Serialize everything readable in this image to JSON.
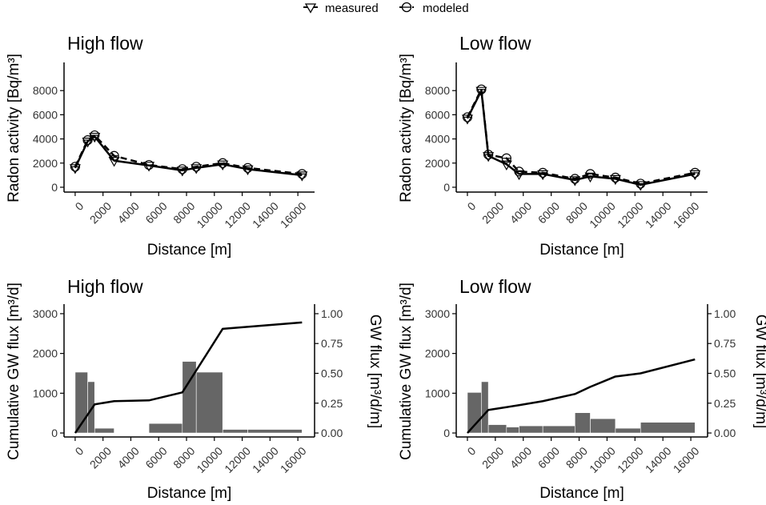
{
  "legend": {
    "items": [
      {
        "label": "measured",
        "icon": "triangle-down-icon"
      },
      {
        "label": "modeled",
        "icon": "circle-minus-icon"
      }
    ]
  },
  "chart_data": [
    {
      "id": "p1",
      "type": "line",
      "title": "High flow",
      "xlabel": "Distance [m]",
      "ylabel": "Radon activity [Bq/m³]",
      "xlim": [
        -800,
        17200
      ],
      "ylim": [
        -400,
        10200
      ],
      "xticks": [
        0,
        2000,
        4000,
        6000,
        8000,
        10000,
        12000,
        14000,
        16000
      ],
      "yticks": [
        0,
        2000,
        4000,
        6000,
        8000
      ],
      "series": [
        {
          "name": "measured",
          "x": [
            0,
            900,
            1400,
            2800,
            5300,
            7700,
            8700,
            10600,
            12400,
            16300
          ],
          "y": [
            1600,
            3800,
            4200,
            2200,
            1800,
            1400,
            1600,
            1900,
            1500,
            1000
          ]
        },
        {
          "name": "modeled",
          "x": [
            0,
            900,
            1400,
            2800,
            5300,
            7700,
            8700,
            10600,
            12400,
            16300
          ],
          "y": [
            1700,
            3900,
            4300,
            2600,
            1850,
            1500,
            1700,
            2000,
            1600,
            1100
          ]
        }
      ]
    },
    {
      "id": "p2",
      "type": "line",
      "title": "Low flow",
      "xlabel": "Distance [m]",
      "ylabel": "Radon activity [Bq/m³]",
      "xlim": [
        -800,
        17200
      ],
      "ylim": [
        -400,
        10200
      ],
      "xticks": [
        0,
        2000,
        4000,
        6000,
        8000,
        10000,
        12000,
        14000,
        16000
      ],
      "yticks": [
        0,
        2000,
        4000,
        6000,
        8000
      ],
      "series": [
        {
          "name": "measured",
          "x": [
            0,
            1000,
            1500,
            2800,
            3700,
            5400,
            7700,
            8800,
            10600,
            12400,
            16300
          ],
          "y": [
            5700,
            8000,
            2600,
            1900,
            1100,
            1100,
            600,
            900,
            700,
            200,
            1100
          ]
        },
        {
          "name": "modeled",
          "x": [
            0,
            1000,
            1500,
            2800,
            3700,
            5400,
            7700,
            8800,
            10600,
            12400,
            16300
          ],
          "y": [
            5800,
            8100,
            2700,
            2400,
            1300,
            1200,
            700,
            1100,
            800,
            300,
            1200
          ]
        }
      ]
    },
    {
      "id": "p3",
      "type": "bar",
      "title": "High flow",
      "xlabel": "Distance [m]",
      "ylabel": "Cumulative GW flux [m³/d]",
      "ylabel2": "GW flux [m³/d/m]",
      "xlim": [
        -800,
        17200
      ],
      "ylim": [
        -100,
        3200
      ],
      "ylim2": [
        -0.0333,
        1.0667
      ],
      "xticks": [
        0,
        2000,
        4000,
        6000,
        8000,
        10000,
        12000,
        14000,
        16000
      ],
      "yticks": [
        0,
        1000,
        2000,
        3000
      ],
      "yticks2": [
        0.0,
        0.25,
        0.5,
        0.75,
        1.0
      ],
      "ytick_labels2": [
        "0.00",
        "0.25",
        "0.50",
        "0.75",
        "1.00"
      ],
      "bars": {
        "name": "GW flux",
        "x_start": [
          0,
          900,
          1400,
          2800,
          5300,
          7700,
          8700,
          10600,
          12400
        ],
        "x_end": [
          900,
          1400,
          2800,
          5300,
          7700,
          8700,
          10600,
          12400,
          16300
        ],
        "values": [
          0.51,
          0.43,
          0.04,
          0.0,
          0.08,
          0.6,
          0.51,
          0.03,
          0.03
        ]
      },
      "line": {
        "name": "cumulative GW flux",
        "x": [
          0,
          1400,
          2800,
          5300,
          7700,
          10600,
          16300
        ],
        "y": [
          0,
          720,
          800,
          820,
          1020,
          2620,
          2780
        ]
      }
    },
    {
      "id": "p4",
      "type": "bar",
      "title": "Low flow",
      "xlabel": "Distance [m]",
      "ylabel": "Cumulative GW flux [m³/d]",
      "ylabel2": "GW flux [m³/d/m]",
      "xlim": [
        -800,
        17200
      ],
      "ylim": [
        -100,
        3200
      ],
      "ylim2": [
        -0.0333,
        1.0667
      ],
      "xticks": [
        0,
        2000,
        4000,
        6000,
        8000,
        10000,
        12000,
        14000,
        16000
      ],
      "yticks": [
        0,
        1000,
        2000,
        3000
      ],
      "yticks2": [
        0.0,
        0.25,
        0.5,
        0.75,
        1.0
      ],
      "ytick_labels2": [
        "0.00",
        "0.25",
        "0.50",
        "0.75",
        "1.00"
      ],
      "bars": {
        "name": "GW flux",
        "x_start": [
          0,
          1000,
          1500,
          2800,
          3700,
          5400,
          7700,
          8800,
          10600,
          12400
        ],
        "x_end": [
          1000,
          1500,
          2800,
          3700,
          5400,
          7700,
          8800,
          10600,
          12400,
          16300
        ],
        "values": [
          0.34,
          0.43,
          0.07,
          0.05,
          0.06,
          0.06,
          0.17,
          0.12,
          0.04,
          0.09
        ]
      },
      "line": {
        "name": "cumulative GW flux",
        "x": [
          0,
          1500,
          2800,
          3700,
          5400,
          7700,
          8800,
          10600,
          12400,
          16300
        ],
        "y": [
          0,
          580,
          650,
          700,
          800,
          980,
          1160,
          1420,
          1500,
          1850
        ]
      }
    }
  ]
}
